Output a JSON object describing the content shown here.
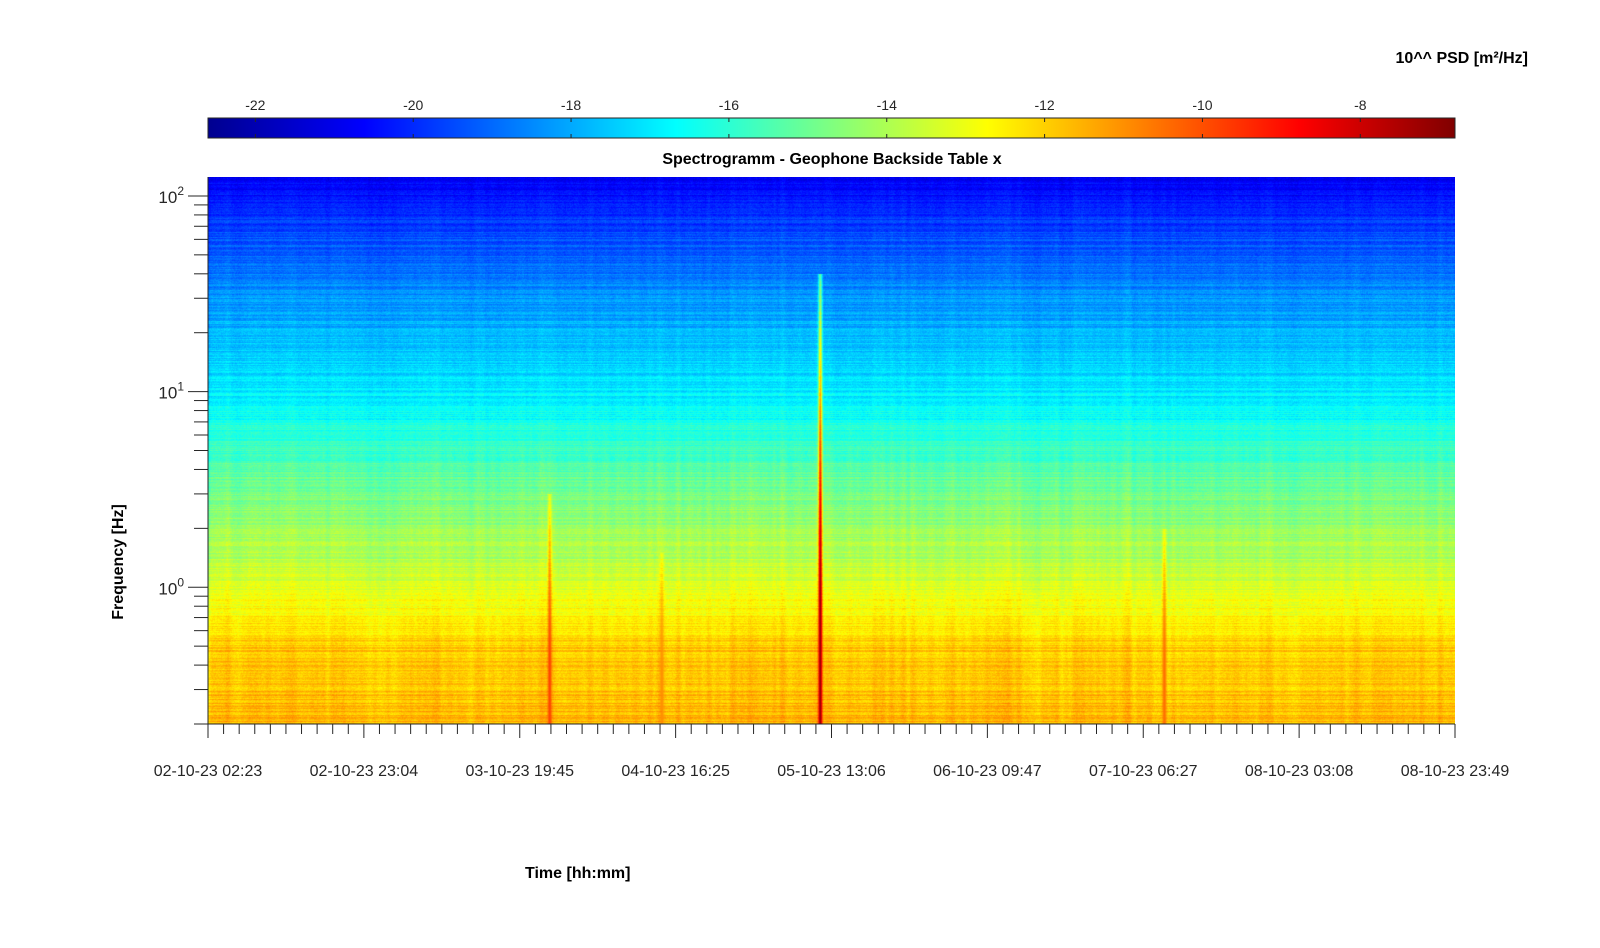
{
  "chart_data": {
    "type": "heatmap",
    "title": "Spectrogramm - Geophone Backside Table x",
    "xlabel": "Time [hh:mm]",
    "ylabel": "Frequency [Hz]",
    "x_tick_labels": [
      "02-10-23 02:23",
      "02-10-23 23:04",
      "03-10-23 19:45",
      "04-10-23 16:25",
      "05-10-23 13:06",
      "06-10-23 09:47",
      "07-10-23 06:27",
      "08-10-23 03:08",
      "08-10-23 23:49"
    ],
    "y_scale": "log",
    "y_range": [
      0.2,
      125
    ],
    "y_ticks": [
      {
        "base": "10",
        "exp": "0",
        "value": 1
      },
      {
        "base": "10",
        "exp": "1",
        "value": 10
      },
      {
        "base": "10",
        "exp": "2",
        "value": 100
      }
    ],
    "colorbar": {
      "title": "10^^ PSD [m²/Hz]",
      "range": [
        -22.6,
        -6.8
      ],
      "ticks": [
        -22,
        -20,
        -18,
        -16,
        -14,
        -12,
        -10,
        -8
      ],
      "tick_labels": [
        "-22",
        "-20",
        "-18",
        "-16",
        "-14",
        "-12",
        "-10",
        "-8"
      ],
      "colormap": "jet",
      "location": "top"
    },
    "events": [
      {
        "time": "03-10-23 23:39",
        "peak_log_psd": -9.8,
        "max_frequency_hz": 3
      },
      {
        "time": "04-10-23 14:32",
        "peak_log_psd": -11.0,
        "max_frequency_hz": 1.5
      },
      {
        "time": "05-10-23 11:33",
        "peak_log_psd": -7.2,
        "max_frequency_hz": 40
      },
      {
        "time": "07-10-23 09:12",
        "peak_log_psd": -10.5,
        "max_frequency_hz": 2
      }
    ]
  }
}
